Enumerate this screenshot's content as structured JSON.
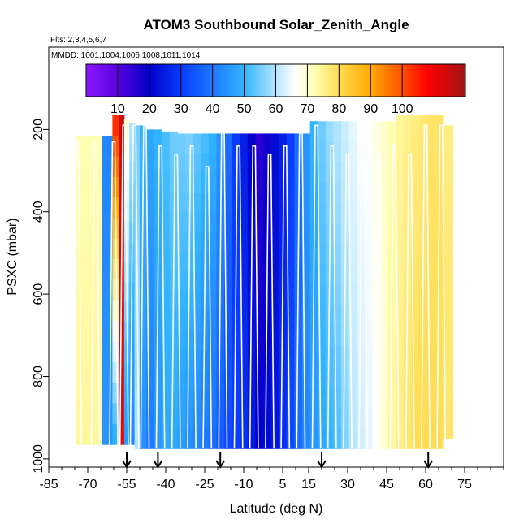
{
  "chart_data": {
    "type": "heatmap",
    "title": "ATOM3 Southbound Solar_Zenith_Angle",
    "flights_label": "Flts: 2,3,4,5,6,7",
    "dates_label": "MMDD: 1001,1004,1006,1008,1011,1014",
    "xlabel": "Latitude (deg N)",
    "ylabel": "PSXC (mbar)",
    "xlim": [
      -85,
      90
    ],
    "ylim": [
      1020,
      0
    ],
    "x_ticks": [
      -85,
      -70,
      -55,
      -40,
      -25,
      -10,
      5,
      15,
      30,
      45,
      60,
      75
    ],
    "x_tick_labels": [
      "-85",
      "-70",
      "-55",
      "-40",
      "-25",
      "-10",
      "5",
      "15",
      "30",
      "45",
      "60",
      "75"
    ],
    "y_ticks": [
      200,
      400,
      600,
      800,
      1000
    ],
    "y_tick_labels": [
      "200",
      "400",
      "600",
      "800",
      "1000"
    ],
    "colorbar": {
      "ticks": [
        10,
        20,
        30,
        40,
        50,
        60,
        70,
        80,
        90,
        100
      ],
      "tick_labels": [
        "10",
        "20",
        "30",
        "40",
        "50",
        "60",
        "70",
        "80",
        "90",
        "100"
      ],
      "range": [
        0,
        120
      ],
      "stops": [
        {
          "v": 0,
          "c": "#8c1aff"
        },
        {
          "v": 10,
          "c": "#5a00e0"
        },
        {
          "v": 20,
          "c": "#0000c8"
        },
        {
          "v": 30,
          "c": "#0a3cff"
        },
        {
          "v": 40,
          "c": "#1e78ff"
        },
        {
          "v": 50,
          "c": "#32b4ff"
        },
        {
          "v": 60,
          "c": "#b4e6ff"
        },
        {
          "v": 66,
          "c": "#ffffff"
        },
        {
          "v": 72,
          "c": "#ffffb4"
        },
        {
          "v": 80,
          "c": "#ffdc50"
        },
        {
          "v": 90,
          "c": "#ffaa00"
        },
        {
          "v": 100,
          "c": "#ff5000"
        },
        {
          "v": 108,
          "c": "#ff0000"
        },
        {
          "v": 120,
          "c": "#a01414"
        }
      ]
    },
    "latitude_bins": [
      -72,
      -67,
      -62,
      -59,
      -57,
      -55,
      -53,
      -51,
      -49,
      -46,
      -43,
      -40,
      -37,
      -34,
      -31,
      -28,
      -25,
      -22,
      -19,
      -16,
      -13,
      -10,
      -7,
      -4,
      -1,
      2,
      5,
      8,
      11,
      14,
      17,
      20,
      23,
      26,
      29,
      32,
      35,
      38,
      41,
      44,
      47,
      50,
      53,
      56,
      59,
      62,
      65,
      68
    ],
    "sza_upper": [
      72,
      72,
      42,
      105,
      115,
      70,
      60,
      55,
      50,
      48,
      50,
      52,
      55,
      55,
      56,
      54,
      52,
      50,
      45,
      38,
      30,
      25,
      20,
      15,
      18,
      22,
      25,
      30,
      38,
      45,
      50,
      55,
      58,
      60,
      62,
      64,
      66,
      66,
      68,
      70,
      72,
      74,
      75,
      76,
      77,
      78,
      78,
      76
    ],
    "sza_lower": [
      74,
      74,
      45,
      48,
      110,
      45,
      42,
      60,
      44,
      40,
      45,
      48,
      48,
      46,
      44,
      42,
      40,
      38,
      35,
      32,
      30,
      28,
      25,
      20,
      22,
      24,
      28,
      32,
      38,
      42,
      45,
      48,
      50,
      52,
      56,
      60,
      62,
      64,
      66,
      70,
      74,
      76,
      78,
      80,
      80,
      80,
      80,
      78
    ],
    "bin_top_mbar": [
      215,
      215,
      215,
      165,
      165,
      175,
      185,
      190,
      190,
      200,
      200,
      205,
      205,
      210,
      210,
      210,
      210,
      210,
      210,
      210,
      210,
      210,
      210,
      210,
      210,
      210,
      210,
      210,
      210,
      210,
      180,
      180,
      180,
      180,
      180,
      180,
      180,
      180,
      180,
      180,
      180,
      165,
      165,
      165,
      165,
      165,
      165,
      190
    ],
    "bin_bottom_mbar": [
      965,
      965,
      965,
      965,
      965,
      965,
      965,
      975,
      975,
      975,
      975,
      975,
      975,
      975,
      975,
      975,
      975,
      975,
      975,
      975,
      975,
      975,
      975,
      975,
      975,
      975,
      975,
      975,
      975,
      975,
      975,
      975,
      975,
      975,
      975,
      975,
      975,
      975,
      975,
      975,
      975,
      975,
      975,
      975,
      975,
      975,
      975,
      950
    ],
    "profiles": [
      {
        "lat": -74,
        "top": 230
      },
      {
        "lat": -67,
        "top": 230
      },
      {
        "lat": -60,
        "top": 230
      },
      {
        "lat": -56,
        "top": 190
      },
      {
        "lat": -52,
        "top": 190
      },
      {
        "lat": -48,
        "top": 190
      },
      {
        "lat": -42,
        "top": 240
      },
      {
        "lat": -36,
        "top": 260
      },
      {
        "lat": -30,
        "top": 240
      },
      {
        "lat": -24,
        "top": 290
      },
      {
        "lat": -18,
        "top": 190
      },
      {
        "lat": -12,
        "top": 240
      },
      {
        "lat": -6,
        "top": 240
      },
      {
        "lat": 0,
        "top": 260
      },
      {
        "lat": 6,
        "top": 240
      },
      {
        "lat": 12,
        "top": 190
      },
      {
        "lat": 18,
        "top": 190
      },
      {
        "lat": 24,
        "top": 240
      },
      {
        "lat": 30,
        "top": 260
      },
      {
        "lat": 36,
        "top": 240
      },
      {
        "lat": 42,
        "top": 260
      },
      {
        "lat": 48,
        "top": 240
      },
      {
        "lat": 54,
        "top": 260
      },
      {
        "lat": 60,
        "top": 190
      },
      {
        "lat": 66,
        "top": 190
      }
    ],
    "arrows_lat": [
      -55,
      -43,
      -19,
      20,
      61
    ]
  },
  "colors": {
    "frame": "#000000",
    "profile_line": "#ffffff"
  }
}
